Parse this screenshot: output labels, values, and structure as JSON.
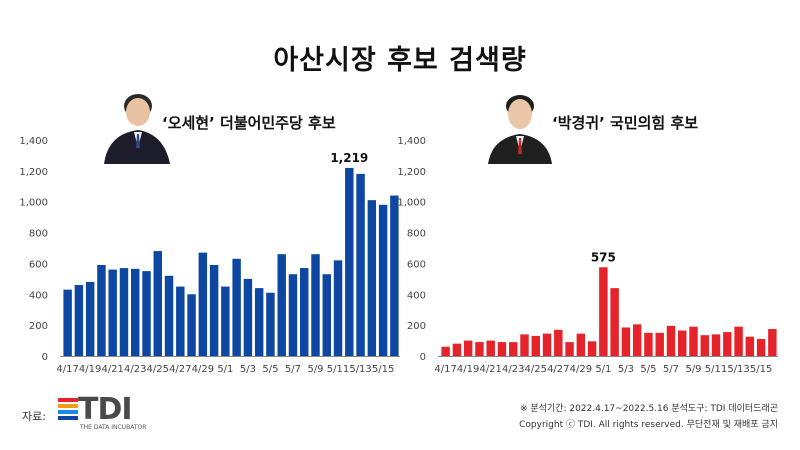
{
  "title": "아산시장 후보 검색량",
  "candidates": [
    {
      "label": "‘오세현’ 더불어민주당 후보",
      "photo": "portrait-photo"
    },
    {
      "label": "‘박경귀’ 국민의힘 후보",
      "photo": "portrait-photo"
    }
  ],
  "colors": {
    "left_bars": "#0d47a1",
    "right_bars": "#e5232a"
  },
  "source": {
    "label": "자료:",
    "logo_text": "TDI",
    "logo_sub": "THE DATA INCUBATOR",
    "logo_colors": [
      "#e5232a",
      "#f39c12",
      "#1e88e5",
      "#0d47a1"
    ]
  },
  "footer": {
    "line1": "※ 분석기간: 2022.4.17~2022.5.16   분석도구: TDI 데이터드래곤",
    "line2": "Copyright ⓒ TDI. All rights reserved. 무단전재 및 재배포 금지"
  },
  "chart_data": [
    {
      "type": "bar",
      "name": "‘오세현’ 더불어민주당 후보",
      "color": "#0d47a1",
      "categories": [
        "4/17",
        "4/18",
        "4/19",
        "4/20",
        "4/21",
        "4/22",
        "4/23",
        "4/24",
        "4/25",
        "4/26",
        "4/27",
        "4/28",
        "4/29",
        "4/30",
        "5/1",
        "5/2",
        "5/3",
        "5/4",
        "5/5",
        "5/6",
        "5/7",
        "5/8",
        "5/9",
        "5/10",
        "5/11",
        "5/12",
        "5/13",
        "5/14",
        "5/15",
        "5/16"
      ],
      "x_tick_labels": [
        "4/17",
        "4/19",
        "4/21",
        "4/23",
        "4/25",
        "4/27",
        "4/29",
        "5/1",
        "5/3",
        "5/5",
        "5/7",
        "5/9",
        "5/11",
        "5/13",
        "5/15"
      ],
      "values": [
        430,
        460,
        480,
        590,
        560,
        570,
        565,
        550,
        680,
        520,
        450,
        400,
        670,
        590,
        450,
        630,
        500,
        440,
        410,
        660,
        530,
        570,
        660,
        530,
        620,
        1219,
        1180,
        1010,
        980,
        1040
      ],
      "peak_label": "1,219",
      "ylim": [
        0,
        1400
      ],
      "y_ticks": [
        0,
        200,
        400,
        600,
        800,
        1000,
        1200,
        1400
      ],
      "y_tick_labels": [
        "0",
        "200",
        "400",
        "600",
        "800",
        "1,000",
        "1,200",
        "1,400"
      ],
      "grid": false
    },
    {
      "type": "bar",
      "name": "‘박경귀’ 국민의힘 후보",
      "color": "#e5232a",
      "categories": [
        "4/17",
        "4/18",
        "4/19",
        "4/20",
        "4/21",
        "4/22",
        "4/23",
        "4/24",
        "4/25",
        "4/26",
        "4/27",
        "4/28",
        "4/29",
        "4/30",
        "5/1",
        "5/2",
        "5/3",
        "5/4",
        "5/5",
        "5/6",
        "5/7",
        "5/8",
        "5/9",
        "5/10",
        "5/11",
        "5/12",
        "5/13",
        "5/14",
        "5/15",
        "5/16"
      ],
      "x_tick_labels": [
        "4/17",
        "4/19",
        "4/21",
        "4/23",
        "4/25",
        "4/27",
        "4/29",
        "5/1",
        "5/3",
        "5/5",
        "5/7",
        "5/9",
        "5/11",
        "5/13",
        "5/15"
      ],
      "values": [
        60,
        80,
        100,
        90,
        100,
        90,
        90,
        140,
        130,
        145,
        170,
        90,
        145,
        95,
        575,
        440,
        185,
        205,
        150,
        150,
        195,
        165,
        190,
        135,
        140,
        155,
        190,
        125,
        110,
        175
      ],
      "peak_label": "575",
      "ylim": [
        0,
        1400
      ],
      "y_ticks": [
        0,
        200,
        400,
        600,
        800,
        1000,
        1200,
        1400
      ],
      "y_tick_labels": [
        "0",
        "200",
        "400",
        "600",
        "800",
        "1,000",
        "1,200",
        "1,400"
      ],
      "grid": false
    }
  ]
}
